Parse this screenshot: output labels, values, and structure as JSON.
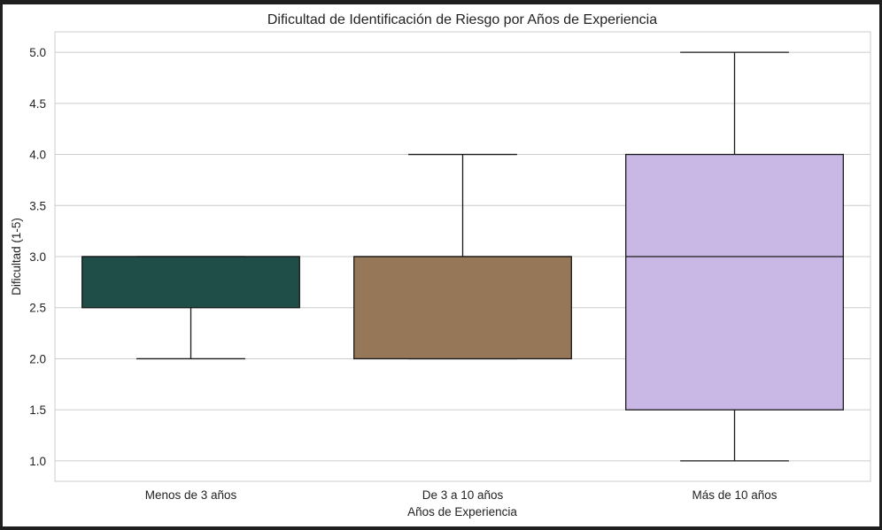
{
  "chart_data": {
    "type": "box",
    "title": "Dificultad de Identificación de Riesgo por Años de Experiencia",
    "xlabel": "Años de Experiencia",
    "ylabel": "Dificultad (1-5)",
    "ylim": [
      0.8,
      5.2
    ],
    "yticks": [
      "1.0",
      "1.5",
      "2.0",
      "2.5",
      "3.0",
      "3.5",
      "4.0",
      "4.5",
      "5.0"
    ],
    "grid": true,
    "categories": [
      "Menos de 3 años",
      "De 3 a 10 años",
      "Más de 10 años"
    ],
    "boxes": [
      {
        "category": "Menos de 3 años",
        "whisker_low": 2.0,
        "q1": 2.5,
        "median": 3.0,
        "q3": 3.0,
        "whisker_high": 3.0,
        "color": "#1f4e48"
      },
      {
        "category": "De 3 a 10 años",
        "whisker_low": 2.0,
        "q1": 2.0,
        "median": 3.0,
        "q3": 3.0,
        "whisker_high": 4.0,
        "color": "#967758"
      },
      {
        "category": "Más de 10 años",
        "whisker_low": 1.0,
        "q1": 1.5,
        "median": 3.0,
        "q3": 4.0,
        "whisker_high": 5.0,
        "color": "#c9b8e6"
      }
    ]
  }
}
